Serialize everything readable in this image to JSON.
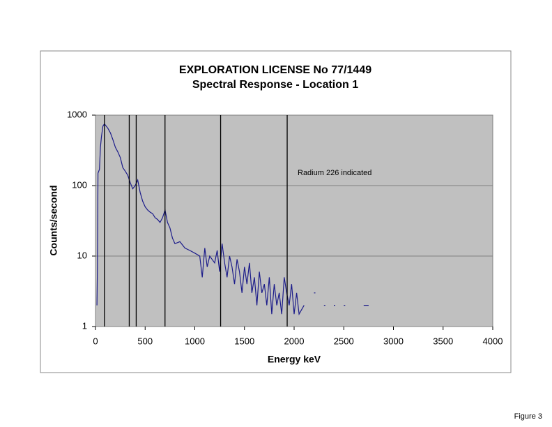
{
  "caption": "Figure 3",
  "chart_data": {
    "type": "line",
    "title": "EXPLORATION LICENSE No 77/1449",
    "subtitle": "Spectral Response - Location 1",
    "x_label": "Energy keV",
    "y_label": "Counts/second",
    "annotation": "Radium 226 indicated",
    "x": [
      0,
      15,
      20,
      25,
      40,
      50,
      60,
      75,
      90,
      100,
      125,
      150,
      175,
      200,
      225,
      250,
      275,
      300,
      325,
      350,
      375,
      400,
      425,
      450,
      475,
      500,
      525,
      550,
      575,
      600,
      625,
      650,
      675,
      700,
      725,
      750,
      775,
      800,
      850,
      900,
      950,
      1000,
      1050,
      1075,
      1100,
      1125,
      1150,
      1200,
      1225,
      1250,
      1275,
      1300,
      1325,
      1350,
      1375,
      1400,
      1425,
      1450,
      1475,
      1500,
      1525,
      1550,
      1575,
      1600,
      1625,
      1650,
      1675,
      1700,
      1725,
      1750,
      1775,
      1800,
      1825,
      1850,
      1875,
      1900,
      1925,
      1950,
      1975,
      2000,
      2025,
      2050,
      2100,
      2150,
      2200,
      2250,
      2300,
      2350,
      2400,
      2450,
      2500,
      2550,
      2700,
      2750,
      2800
    ],
    "values": [
      null,
      2,
      7,
      150,
      170,
      350,
      500,
      700,
      750,
      720,
      650,
      560,
      450,
      350,
      300,
      250,
      180,
      160,
      140,
      110,
      90,
      100,
      120,
      80,
      60,
      50,
      45,
      42,
      40,
      35,
      33,
      30,
      35,
      45,
      30,
      25,
      18,
      15,
      16,
      13,
      12,
      11,
      10,
      5,
      13,
      7,
      10,
      8,
      12,
      6,
      15,
      8,
      5,
      10,
      7,
      4,
      9,
      6,
      3,
      7,
      4,
      8,
      3,
      5,
      2,
      6,
      3,
      4,
      2,
      5,
      1.5,
      4,
      2,
      3,
      1.5,
      5,
      3,
      2,
      4,
      1.5,
      3,
      1.5,
      2,
      null,
      3,
      null,
      2,
      null,
      2,
      null,
      2,
      null,
      2,
      2,
      null
    ],
    "color": "#1c1c8a",
    "vlines": [
      90,
      340,
      410,
      700,
      1260,
      1930
    ],
    "xlim": [
      0,
      4000
    ],
    "xticks": [
      0,
      500,
      1000,
      1500,
      2000,
      2500,
      3000,
      3500,
      4000
    ],
    "ylim": [
      1,
      1000
    ],
    "yticks": [
      1,
      10,
      100,
      1000
    ],
    "log_y": true,
    "grid": true
  }
}
